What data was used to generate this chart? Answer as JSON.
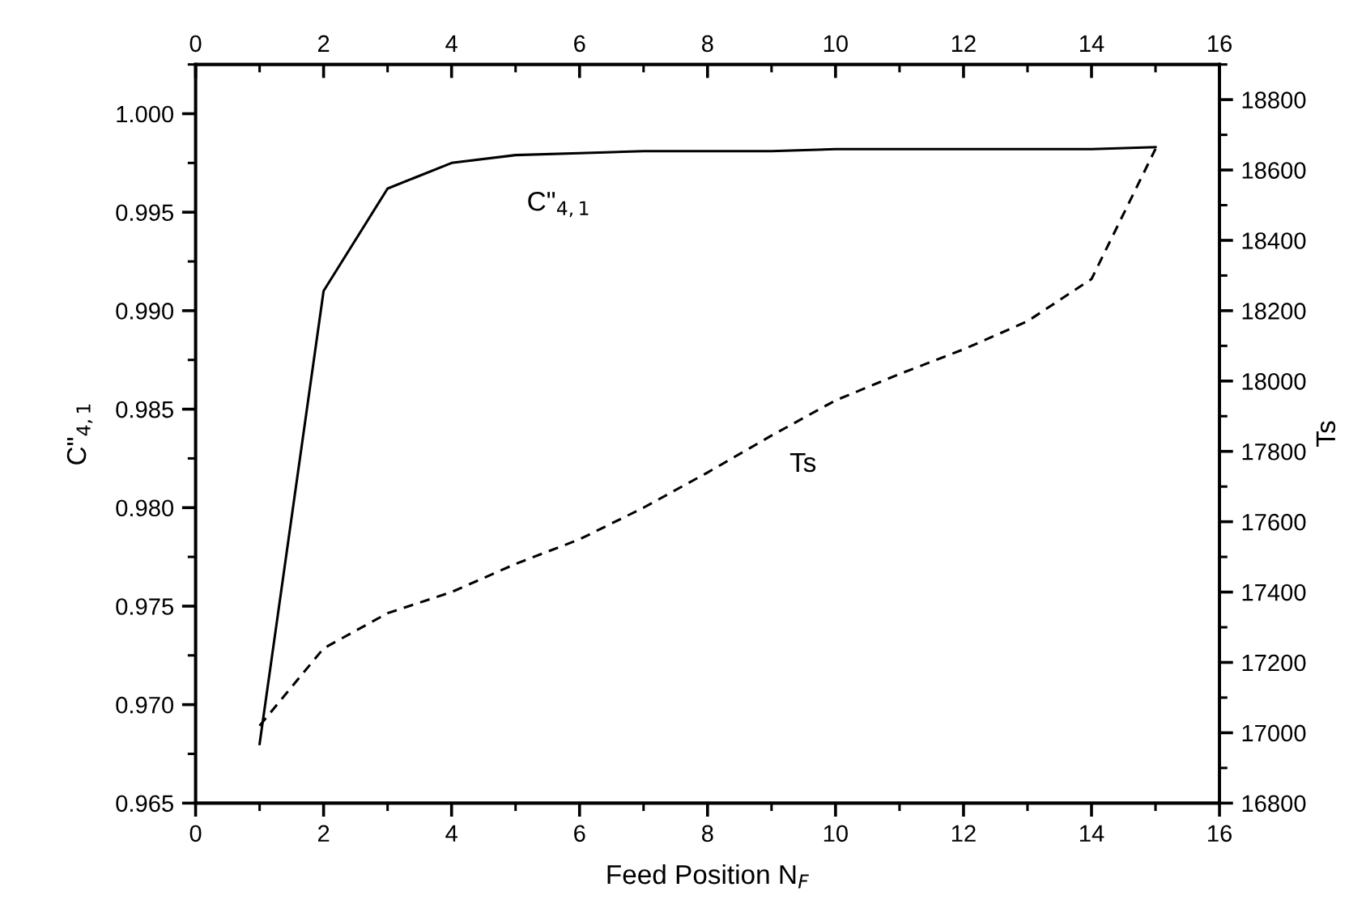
{
  "chart_data": {
    "type": "line",
    "xlabel": "Feed Position N$_{F}$",
    "ylabel": "C\"$_{4,1}$",
    "y2label": "Ts",
    "x": [
      1,
      2,
      3,
      4,
      5,
      6,
      7,
      8,
      9,
      10,
      11,
      12,
      13,
      14,
      15
    ],
    "series": [
      {
        "name": "C\"$_{4,1}$",
        "color": "#000000",
        "line_style": "solid",
        "values": [
          0.968,
          0.991,
          0.9962,
          0.9975,
          0.9979,
          0.998,
          0.9981,
          0.9981,
          0.9981,
          0.9982,
          0.9982,
          0.9982,
          0.9982,
          0.9982,
          0.9983
        ]
      },
      {
        "name": "Ts",
        "color": "#000000",
        "line_style": "dashed",
        "axis": "y2",
        "values": [
          17020,
          17240,
          17340,
          17400,
          17480,
          17550,
          17640,
          17740,
          17845,
          17945,
          18020,
          18090,
          18170,
          18290,
          18660
        ]
      }
    ],
    "xlim": [
      0,
      16
    ],
    "xticks": [
      0,
      2,
      4,
      6,
      8,
      10,
      12,
      14,
      16
    ],
    "x2lim": [
      0,
      16
    ],
    "x2ticks": [
      0,
      2,
      4,
      6,
      8,
      10,
      12,
      14,
      16
    ],
    "ylim": [
      0.965,
      1.0025
    ],
    "yticks": [
      0.965,
      {
        "value": 0.97,
        "label": "0.970"
      },
      0.975,
      {
        "value": 0.98,
        "label": "0.980"
      },
      0.985,
      {
        "value": 0.99,
        "label": "0.990"
      },
      0.995,
      {
        "value": 1.0,
        "label": "1.000"
      }
    ],
    "y2lim": [
      16800,
      18900
    ],
    "y2ticks": [
      16800,
      17000,
      17200,
      17400,
      17600,
      17800,
      18000,
      18200,
      18400,
      18600,
      18800
    ],
    "grid": false,
    "legend": false,
    "marker": "none"
  }
}
